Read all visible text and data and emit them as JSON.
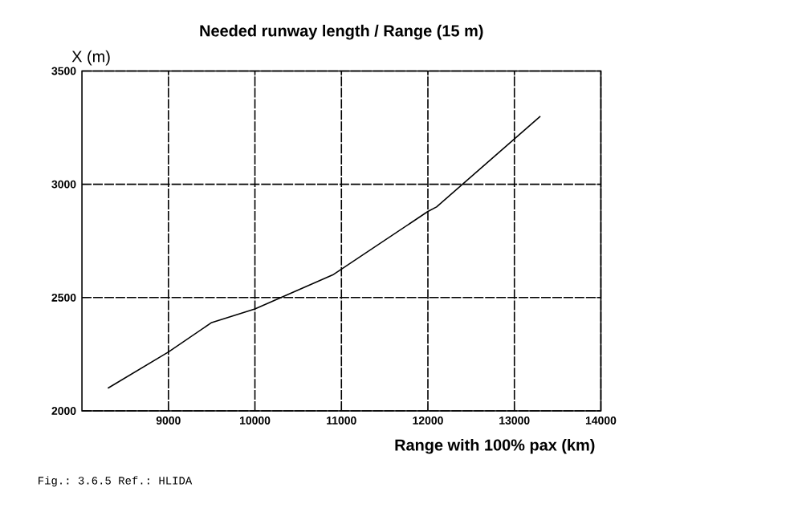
{
  "chart_data": {
    "type": "line",
    "title": "Needed runway length / Range (15 m)",
    "xlabel": "Range with 100% pax (km)",
    "ylabel": "X (m)",
    "x": [
      8300,
      9000,
      9500,
      10000,
      10900,
      12000,
      12100,
      13000,
      13300
    ],
    "values": [
      2100,
      2260,
      2390,
      2450,
      2600,
      2880,
      2900,
      3200,
      3300
    ],
    "color": "#000000",
    "xlim": [
      8000,
      14000
    ],
    "ylim": [
      2000,
      3500
    ],
    "xticks": [
      9000,
      10000,
      11000,
      12000,
      13000,
      14000
    ],
    "yticks": [
      2000,
      2500,
      3000,
      3500
    ],
    "grid": true,
    "annotations": [
      "Fig.: 3.6.5 Ref.: HLIDA"
    ]
  }
}
